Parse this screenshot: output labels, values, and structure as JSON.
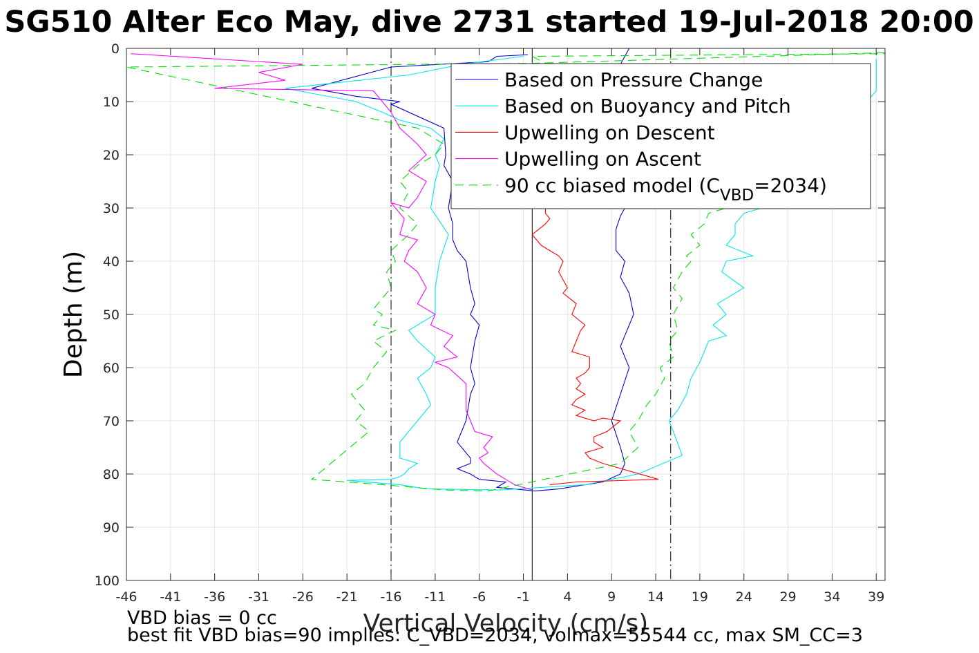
{
  "chart_data": {
    "type": "line",
    "title": "SG510 Alter Eco May, dive 2731 started 19-Jul-2018 20:00",
    "xlabel": "Vertical Velocity (cm/s)",
    "ylabel": "Depth (m)",
    "xlim": [
      -46,
      40
    ],
    "ylim": [
      0,
      100
    ],
    "y_reversed": true,
    "xticks": [
      -46,
      -41,
      -36,
      -31,
      -26,
      -21,
      -16,
      -11,
      -6,
      -1,
      4,
      9,
      14,
      19,
      24,
      29,
      34,
      39
    ],
    "yticks": [
      0,
      10,
      20,
      30,
      40,
      50,
      60,
      70,
      80,
      90,
      100
    ],
    "grid": true,
    "legend_position": "top-right",
    "reference_lines": [
      {
        "x": -16,
        "style": "dash-dot"
      },
      {
        "x": 0,
        "style": "solid"
      },
      {
        "x": 15.7,
        "style": "dash-dot"
      }
    ],
    "series": [
      {
        "name": "Based on Pressure Change",
        "color": "#0000cc",
        "dash": "solid",
        "x": [
          -0.5,
          -4,
          -5,
          -16,
          -25,
          -20,
          -15,
          -16,
          -10,
          -9.8,
          -10,
          -9,
          -9.5,
          -9,
          -9,
          -8.5,
          -7.5,
          -7,
          -6.5,
          -7,
          -6,
          -6.5,
          -7,
          -6.5,
          -7,
          -7.5,
          -8.5,
          -7,
          -7,
          -8.5,
          -7,
          -6,
          -3,
          -4,
          -2,
          0.3,
          3,
          8,
          10,
          10.5,
          10,
          9,
          10,
          11,
          10,
          11.5,
          11,
          10,
          10.5,
          9.5,
          9.5,
          9.5,
          10,
          10.5,
          9.5,
          8,
          8,
          9.5,
          10,
          11
        ],
        "y": [
          1.2,
          1.5,
          2.5,
          3.5,
          7.5,
          9,
          10,
          10.5,
          15,
          20,
          22,
          25,
          30,
          33,
          36,
          38,
          40,
          45,
          48,
          50,
          52,
          55,
          60,
          63,
          65,
          70,
          74,
          77,
          78,
          79,
          80,
          81,
          81.5,
          82.5,
          82.8,
          83.2,
          82.8,
          81.5,
          80,
          78,
          75,
          70,
          65,
          60,
          56,
          50,
          46,
          43,
          40,
          38,
          36,
          34,
          31.5,
          30,
          28,
          23,
          15,
          6,
          3,
          0
        ]
      },
      {
        "name": "Based on Buoyancy and Pitch",
        "color": "#00e5ee",
        "dash": "solid",
        "x": [
          -1,
          -8,
          -14,
          -28,
          -20,
          -17,
          -15,
          -11.5,
          -10,
          -11,
          -10.5,
          -11,
          -11.5,
          -9.5,
          -10.5,
          -11,
          -11,
          -14,
          -13,
          -11,
          -11.5,
          -13,
          -12,
          -11.5,
          -13,
          -14,
          -14.5,
          -15,
          -15,
          -13,
          -14,
          -14.5,
          -15,
          -16,
          -21,
          -15,
          -12,
          -3.5,
          6,
          12,
          17,
          16,
          15.5,
          16.5,
          17.5,
          18,
          19,
          20,
          22,
          20.5,
          22,
          21,
          24,
          21.5,
          22,
          25,
          22,
          23,
          23,
          24,
          26,
          30,
          39,
          39
        ],
        "y": [
          1.5,
          3,
          5,
          7.5,
          10,
          12,
          13.5,
          15,
          17,
          20,
          22,
          25,
          30,
          35,
          40,
          45,
          50,
          53,
          55,
          58,
          60,
          62,
          65,
          67,
          70,
          72,
          73,
          74,
          77,
          78,
          79,
          80,
          80.5,
          81,
          81.2,
          82,
          82.8,
          83,
          82,
          80,
          76.5,
          72,
          70,
          68,
          65,
          62,
          59,
          55,
          54,
          52,
          50,
          48,
          45,
          42,
          40,
          39,
          37,
          35,
          33,
          31,
          30,
          25,
          8,
          2
        ]
      },
      {
        "name": "Upwelling on Descent",
        "color": "#ff0000",
        "dash": "solid",
        "x": [
          1.5,
          1.5,
          2,
          1.5,
          0,
          1,
          2,
          3,
          3.5,
          3,
          4,
          3.5,
          5,
          4.5,
          6,
          5.5,
          5,
          4.5,
          6.5,
          6.5,
          6,
          5,
          5.5,
          5,
          6,
          5,
          4.5,
          6,
          5,
          7,
          8,
          10,
          8.5,
          7,
          7,
          8,
          6,
          6.5,
          8,
          14.3,
          5,
          2
        ],
        "y": [
          30,
          31,
          32,
          33,
          35,
          37,
          38,
          39,
          40,
          42,
          45,
          46,
          48,
          50,
          52,
          53,
          55,
          57,
          58,
          60,
          61,
          62,
          63,
          64,
          65,
          66,
          67,
          68,
          69,
          70,
          69.5,
          70,
          72,
          73,
          74,
          75,
          76,
          77,
          78,
          81,
          81.5,
          82
        ]
      },
      {
        "name": "Upwelling on Ascent",
        "color": "#ff00ff",
        "dash": "solid",
        "x": [
          -45.5,
          -26,
          -31,
          -28,
          -36,
          -18,
          -17,
          -16,
          -15,
          -13,
          -12,
          -14,
          -12,
          -13,
          -14,
          -16,
          -14.5,
          -15,
          -13,
          -14,
          -14.5,
          -13,
          -12,
          -13,
          -11,
          -11.5,
          -9,
          -10,
          -8.5,
          -11,
          -9.5,
          -7.5,
          -7.5,
          -7.5,
          -7,
          -6.5,
          -4.5,
          -5.5,
          -5,
          -6,
          -5.5,
          -4,
          -3,
          -2,
          0
        ],
        "y": [
          1,
          3,
          4.5,
          6,
          7.5,
          8,
          10,
          12,
          15,
          18,
          20,
          23,
          25,
          28,
          30,
          29,
          32,
          35,
          36,
          38,
          40,
          42,
          45,
          48,
          50,
          52,
          54,
          56,
          58,
          59,
          60,
          63,
          65,
          68,
          70,
          72,
          73,
          75,
          76,
          77,
          78,
          80,
          81,
          82,
          83
        ]
      },
      {
        "name": "90 cc biased model (C_VBD=2034)",
        "color": "#00dd00",
        "dash": "dashed",
        "x": [
          40,
          0,
          -46,
          -13,
          -10,
          -11,
          -13,
          -15,
          -14,
          -15,
          -13,
          -14,
          -16,
          -15.5,
          -16.5,
          -16,
          -17,
          -18,
          -17,
          -18,
          -15.5,
          -18,
          -16.5,
          -18,
          -19,
          -20.5,
          -19,
          -20,
          -18.5,
          -25,
          -17,
          -10,
          -5,
          10,
          12,
          11,
          12,
          13,
          14,
          15,
          14.5,
          16,
          15.5,
          16.5,
          16,
          17,
          16,
          17,
          18,
          17.5,
          19,
          18,
          19.5,
          20,
          22,
          30,
          0,
          40
        ],
        "y": [
          0.8,
          2.8,
          3.5,
          15,
          18,
          20,
          22,
          25,
          27,
          30,
          33,
          35,
          38,
          40,
          42,
          45,
          47,
          49,
          50,
          52,
          53,
          55,
          57,
          60,
          63,
          65,
          68,
          70,
          72,
          81,
          82,
          83,
          83.2,
          78,
          75,
          72,
          70,
          67,
          65,
          62,
          60,
          58,
          55,
          53,
          50,
          47,
          45,
          42,
          40,
          39,
          37,
          35,
          33,
          31,
          30,
          28,
          1.5,
          1
        ]
      }
    ],
    "legend_label_parts": {
      "prefix": "90 cc biased model (C",
      "sub": "VBD",
      "suffix": "=2034)"
    }
  },
  "footer": {
    "line1": "VBD bias = 0 cc",
    "line2": "best fit VBD bias=90 implies: C_VBD=2034, volmax=55544 cc, max SM_CC=3"
  }
}
